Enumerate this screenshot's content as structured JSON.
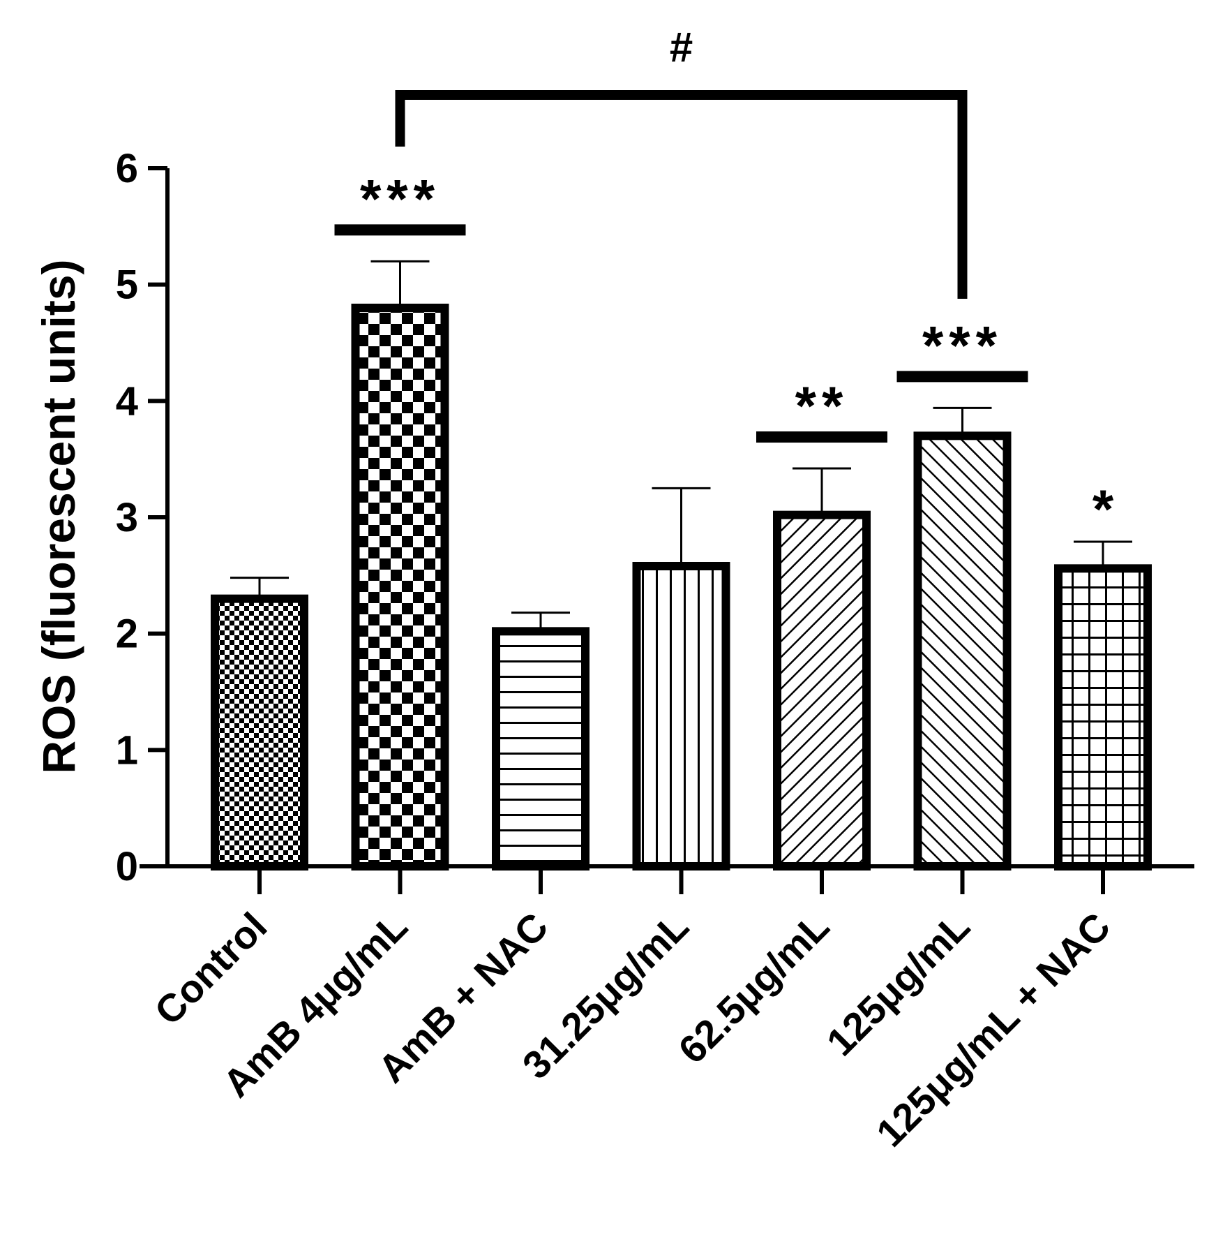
{
  "chart_data": {
    "type": "bar",
    "ylabel": "ROS (fluorescent units)",
    "ylim": [
      0,
      6
    ],
    "yticks": [
      "0",
      "1",
      "2",
      "3",
      "4",
      "5",
      "6"
    ],
    "categories": [
      "Control",
      "AmB 4μg/mL",
      "AmB + NAC",
      "31.25μg/mL",
      "62.5μg/mL",
      "125μg/mL",
      "125μg/mL + NAC"
    ],
    "values": [
      2.3,
      4.8,
      2.02,
      2.58,
      3.02,
      3.7,
      2.56
    ],
    "errors": [
      0.18,
      0.4,
      0.16,
      0.67,
      0.4,
      0.24,
      0.23
    ],
    "patterns": [
      "fine-checker",
      "large-checker",
      "horizontal-lines",
      "vertical-lines",
      "diagonal-up",
      "diagonal-down",
      "grid"
    ],
    "significance": [
      {
        "category_index": 1,
        "label": "***",
        "bar": true
      },
      {
        "category_index": 4,
        "label": "**",
        "bar": true
      },
      {
        "category_index": 5,
        "label": "***",
        "bar": true
      },
      {
        "category_index": 6,
        "label": "*",
        "bar": false
      }
    ],
    "comparison": {
      "from_index": 1,
      "to_index": 5,
      "label": "#"
    }
  }
}
